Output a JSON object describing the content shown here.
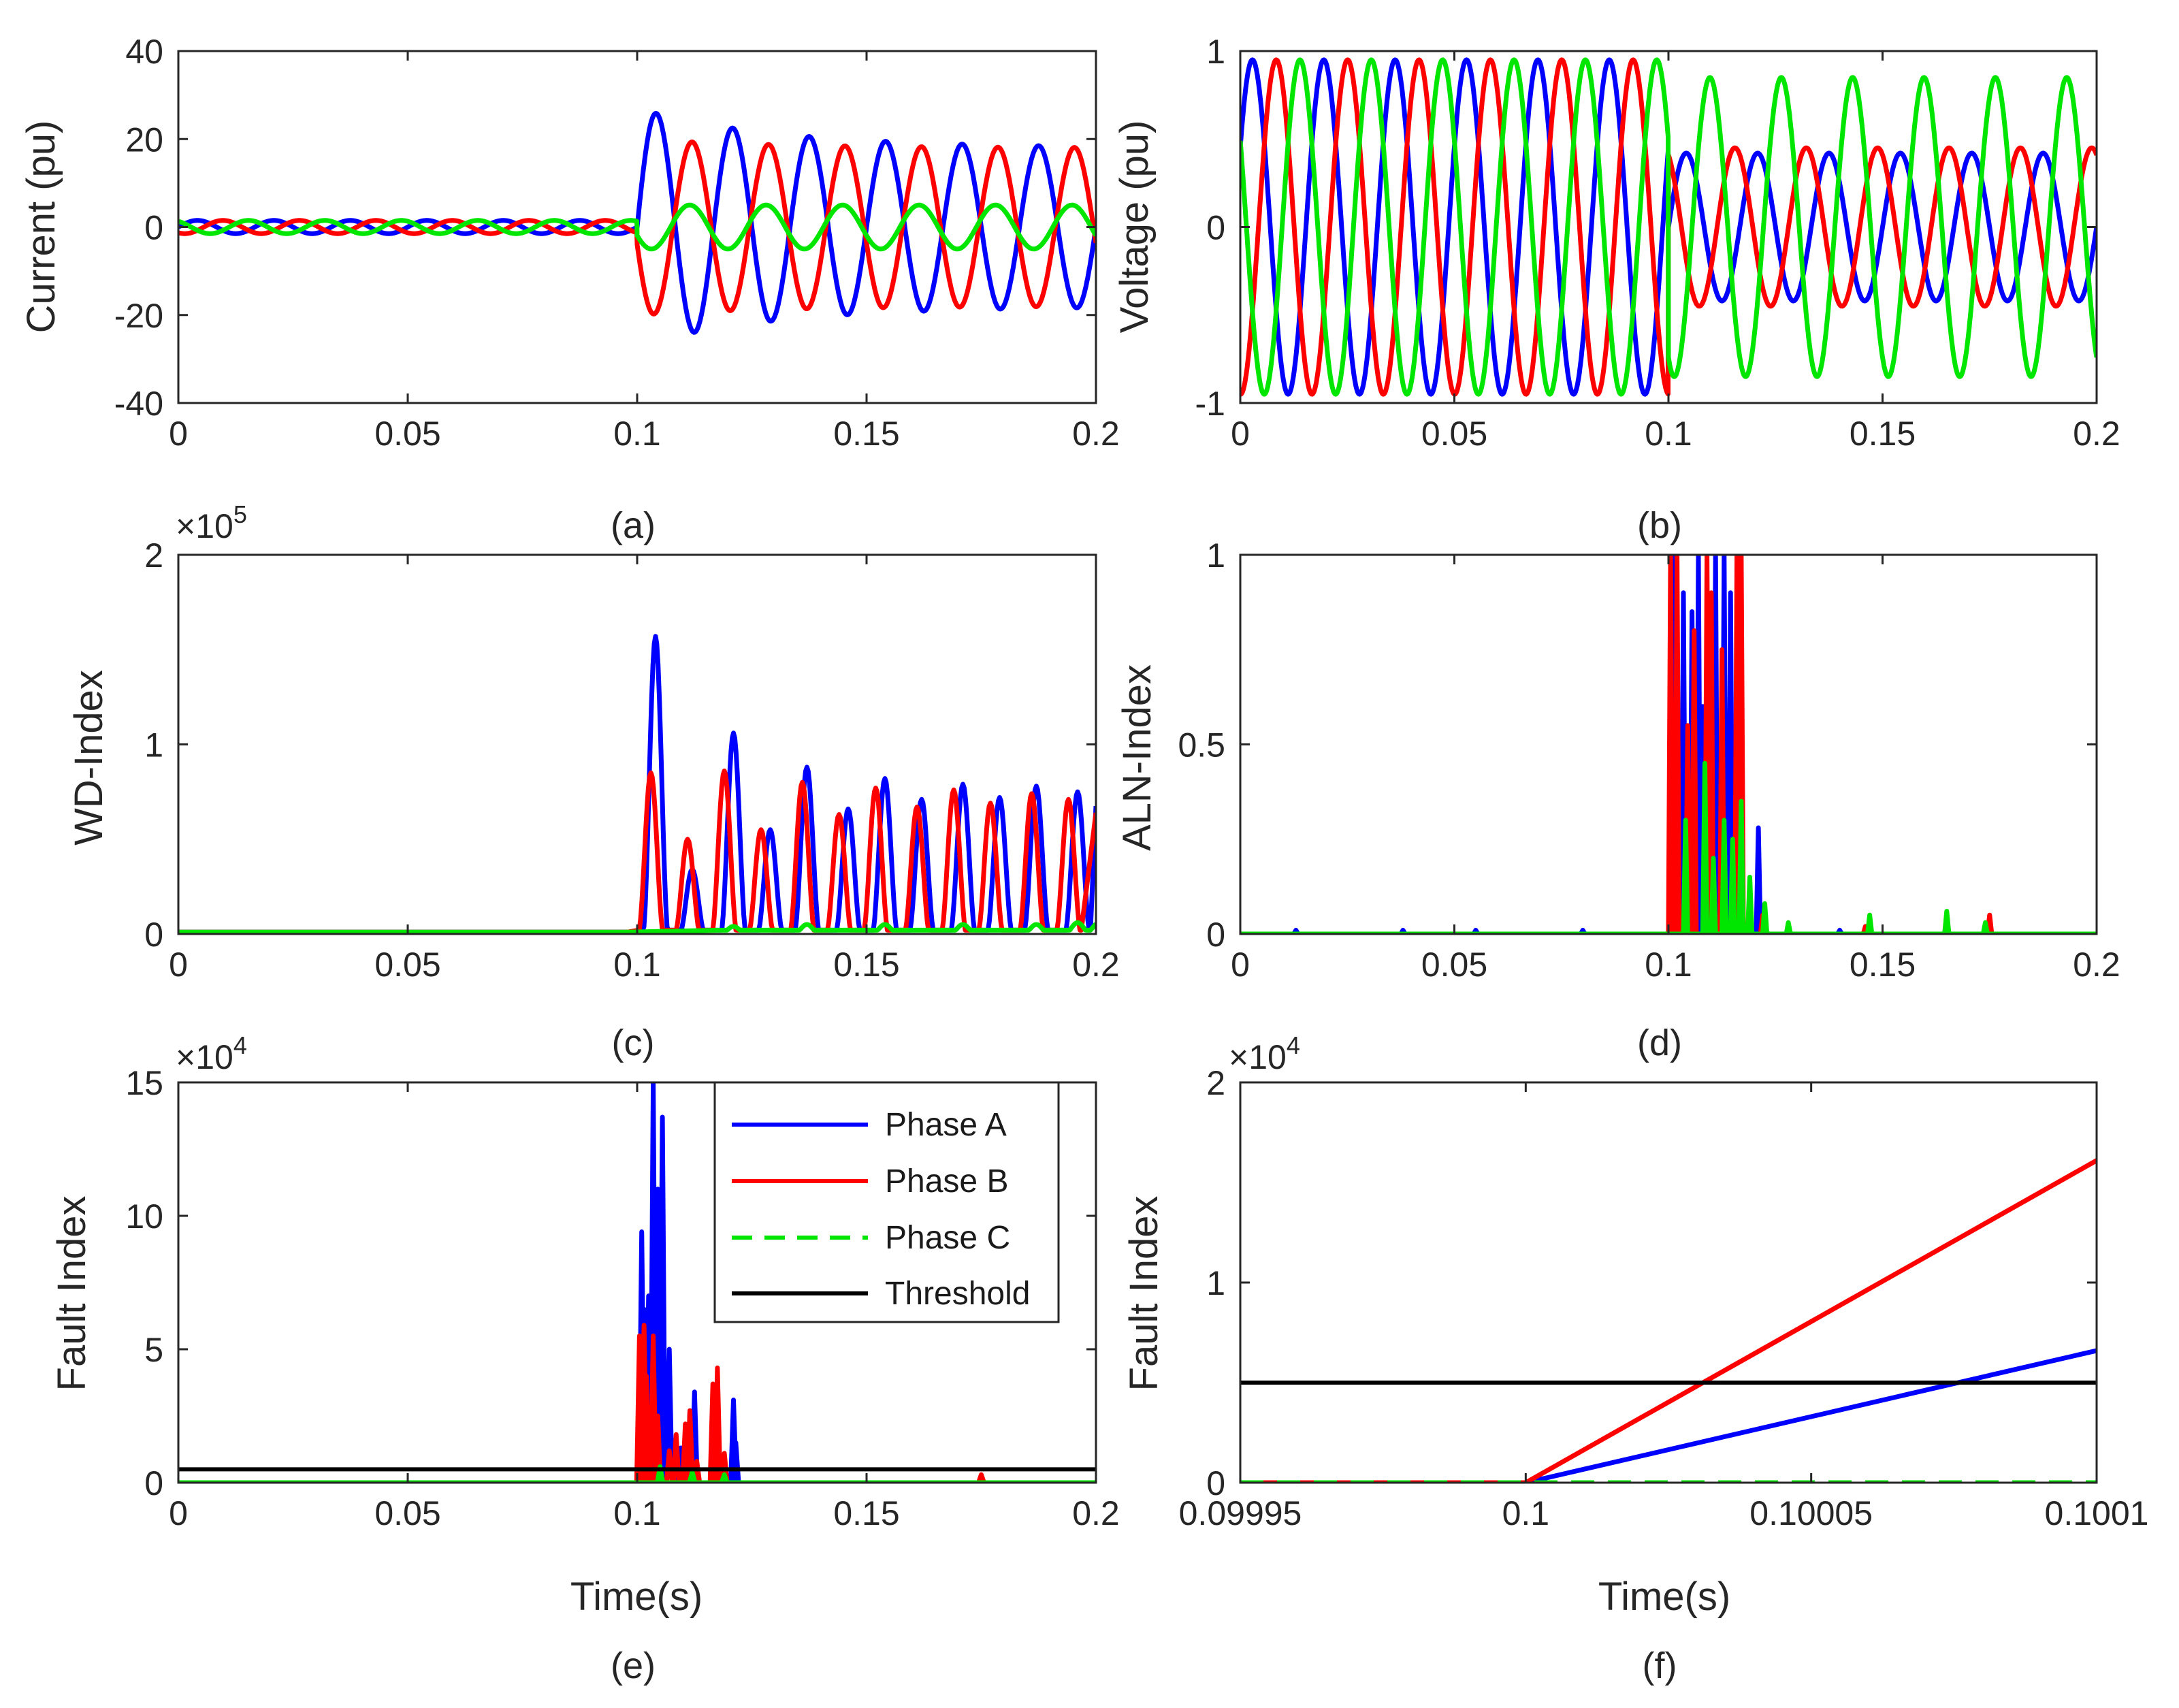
{
  "colors": {
    "phase_a": "#0000ff",
    "phase_b": "#ff0000",
    "phase_c": "#00e600",
    "threshold": "#000000",
    "axis": "#262626"
  },
  "chart_data": [
    {
      "id": "a",
      "type": "line",
      "caption": "(a)",
      "ylabel": "Current (pu)",
      "xlabel": "",
      "xlim": [
        0,
        0.2
      ],
      "ylim": [
        -40,
        40
      ],
      "xticks": [
        "0",
        "0.05",
        "0.1",
        "0.15",
        "0.2"
      ],
      "yticks": [
        "-40",
        "-20",
        "0",
        "20",
        "40"
      ],
      "exponent": "",
      "fault_time": 0.1,
      "frequency_hz": 60,
      "series": [
        {
          "name": "Phase A",
          "color_key": "phase_a",
          "pre_fault_amplitude": 1.5,
          "post_fault_peak": 27,
          "post_fault_tail": 18
        },
        {
          "name": "Phase B",
          "color_key": "phase_b",
          "pre_fault_amplitude": 1.5,
          "post_fault_peak": 20,
          "post_fault_tail": 18
        },
        {
          "name": "Phase C",
          "color_key": "phase_c",
          "pre_fault_amplitude": 1.5,
          "post_fault_peak": 5,
          "post_fault_tail": 5
        }
      ]
    },
    {
      "id": "b",
      "type": "line",
      "caption": "(b)",
      "ylabel": "Voltage (pu)",
      "xlabel": "",
      "xlim": [
        0,
        0.2
      ],
      "ylim": [
        -1,
        1
      ],
      "xticks": [
        "0",
        "0.05",
        "0.1",
        "0.15",
        "0.2"
      ],
      "yticks": [
        "-1",
        "0",
        "1"
      ],
      "exponent": "",
      "fault_time": 0.1,
      "frequency_hz": 60,
      "series": [
        {
          "name": "Phase A",
          "color_key": "phase_a",
          "pre_fault_amplitude": 0.95,
          "post_fault_amplitude": 0.42
        },
        {
          "name": "Phase B",
          "color_key": "phase_b",
          "pre_fault_amplitude": 0.95,
          "post_fault_amplitude": 0.45
        },
        {
          "name": "Phase C",
          "color_key": "phase_c",
          "pre_fault_amplitude": 0.95,
          "post_fault_amplitude": 0.85
        }
      ]
    },
    {
      "id": "c",
      "type": "line",
      "caption": "(c)",
      "ylabel": "WD-Index",
      "xlabel": "",
      "xlim": [
        0,
        0.2
      ],
      "ylim": [
        0,
        2
      ],
      "xticks": [
        "0",
        "0.05",
        "0.1",
        "0.15",
        "0.2"
      ],
      "yticks": [
        "0",
        "1",
        "2"
      ],
      "exponent": "5",
      "series": [
        {
          "name": "Phase A",
          "color_key": "phase_a",
          "peaks": [
            [
              0.104,
              1.57
            ],
            [
              0.112,
              0.34
            ],
            [
              0.121,
              1.06
            ],
            [
              0.129,
              0.55
            ],
            [
              0.137,
              0.88
            ],
            [
              0.146,
              0.66
            ],
            [
              0.154,
              0.82
            ],
            [
              0.162,
              0.71
            ],
            [
              0.171,
              0.79
            ],
            [
              0.179,
              0.72
            ],
            [
              0.187,
              0.78
            ],
            [
              0.196,
              0.75
            ]
          ]
        },
        {
          "name": "Phase B",
          "color_key": "phase_b",
          "peaks": [
            [
              0.103,
              0.85
            ],
            [
              0.111,
              0.5
            ],
            [
              0.119,
              0.86
            ],
            [
              0.127,
              0.55
            ],
            [
              0.136,
              0.8
            ],
            [
              0.144,
              0.63
            ],
            [
              0.152,
              0.77
            ],
            [
              0.161,
              0.67
            ],
            [
              0.169,
              0.76
            ],
            [
              0.177,
              0.69
            ],
            [
              0.186,
              0.74
            ],
            [
              0.194,
              0.71
            ]
          ]
        },
        {
          "name": "Phase C",
          "color_key": "phase_c",
          "peaks": [
            [
              0.121,
              0.04
            ],
            [
              0.137,
              0.05
            ],
            [
              0.154,
              0.05
            ],
            [
              0.171,
              0.05
            ],
            [
              0.187,
              0.05
            ],
            [
              0.196,
              0.06
            ]
          ]
        }
      ]
    },
    {
      "id": "d",
      "type": "line",
      "caption": "(d)",
      "ylabel": "ALN-Index",
      "xlabel": "",
      "xlim": [
        0,
        0.2
      ],
      "ylim": [
        0,
        1
      ],
      "xticks": [
        "0",
        "0.05",
        "0.1",
        "0.15",
        "0.2"
      ],
      "yticks": [
        "0",
        "0.5",
        "1"
      ],
      "exponent": "",
      "series": [
        {
          "name": "Phase A",
          "color_key": "phase_a",
          "spikes": [
            [
              0.1015,
              1.0
            ],
            [
              0.1035,
              0.9
            ],
            [
              0.1055,
              0.85
            ],
            [
              0.107,
              1.0
            ],
            [
              0.108,
              0.6
            ],
            [
              0.111,
              1.0
            ],
            [
              0.113,
              1.0
            ],
            [
              0.1145,
              0.9
            ],
            [
              0.1165,
              0.4
            ],
            [
              0.121,
              0.28
            ],
            [
              0.013,
              0.01
            ],
            [
              0.038,
              0.01
            ],
            [
              0.055,
              0.01
            ],
            [
              0.08,
              0.01
            ],
            [
              0.14,
              0.01
            ]
          ]
        },
        {
          "name": "Phase B",
          "color_key": "phase_b",
          "spikes": [
            [
              0.1005,
              1.0
            ],
            [
              0.102,
              1.0
            ],
            [
              0.1045,
              0.55
            ],
            [
              0.106,
              0.8
            ],
            [
              0.109,
              1.0
            ],
            [
              0.11,
              0.9
            ],
            [
              0.1125,
              0.75
            ],
            [
              0.116,
              1.0
            ],
            [
              0.117,
              1.0
            ],
            [
              0.122,
              0.05
            ],
            [
              0.146,
              0.02
            ],
            [
              0.165,
              0.05
            ],
            [
              0.175,
              0.05
            ]
          ]
        },
        {
          "name": "Phase C",
          "color_key": "phase_c",
          "spikes": [
            [
              0.104,
              0.3
            ],
            [
              0.1085,
              0.45
            ],
            [
              0.1105,
              0.2
            ],
            [
              0.113,
              0.3
            ],
            [
              0.115,
              0.25
            ],
            [
              0.117,
              0.35
            ],
            [
              0.119,
              0.15
            ],
            [
              0.1225,
              0.08
            ],
            [
              0.128,
              0.03
            ],
            [
              0.147,
              0.05
            ],
            [
              0.165,
              0.06
            ],
            [
              0.174,
              0.03
            ]
          ]
        }
      ]
    },
    {
      "id": "e",
      "type": "line",
      "caption": "(e)",
      "ylabel": "Fault Index",
      "xlabel": "Time(s)",
      "xlim": [
        0,
        0.2
      ],
      "ylim": [
        0,
        15
      ],
      "xticks": [
        "0",
        "0.05",
        "0.1",
        "0.15",
        "0.2"
      ],
      "yticks": [
        "0",
        "5",
        "10",
        "15"
      ],
      "exponent": "4",
      "threshold": 0.5,
      "series": [
        {
          "name": "Phase A",
          "color_key": "phase_a",
          "spikes": [
            [
              0.101,
              9.4
            ],
            [
              0.1015,
              6.5
            ],
            [
              0.1025,
              7.0
            ],
            [
              0.1035,
              15.0
            ],
            [
              0.1045,
              11.0
            ],
            [
              0.1055,
              13.7
            ],
            [
              0.107,
              5.0
            ],
            [
              0.1095,
              1.3
            ],
            [
              0.1115,
              2.7
            ],
            [
              0.1125,
              3.4
            ],
            [
              0.121,
              3.1
            ],
            [
              0.1215,
              1.5
            ]
          ]
        },
        {
          "name": "Phase B",
          "color_key": "phase_b",
          "spikes": [
            [
              0.1005,
              5.5
            ],
            [
              0.1015,
              5.9
            ],
            [
              0.102,
              4.0
            ],
            [
              0.1035,
              5.5
            ],
            [
              0.1045,
              2.5
            ],
            [
              0.107,
              1.2
            ],
            [
              0.1085,
              1.8
            ],
            [
              0.1105,
              2.2
            ],
            [
              0.1115,
              2.7
            ],
            [
              0.113,
              0.8
            ],
            [
              0.1165,
              3.7
            ],
            [
              0.1175,
              4.3
            ],
            [
              0.119,
              1.1
            ],
            [
              0.175,
              0.3
            ]
          ]
        },
        {
          "name": "Phase C",
          "color_key": "phase_c",
          "spikes": [
            [
              0.105,
              0.6
            ],
            [
              0.112,
              0.4
            ],
            [
              0.119,
              0.3
            ]
          ]
        }
      ],
      "legend": {
        "position": "top-right",
        "items": [
          {
            "label": "Phase A",
            "color_key": "phase_a",
            "dash": false
          },
          {
            "label": "Phase B",
            "color_key": "phase_b",
            "dash": false
          },
          {
            "label": "Phase C",
            "color_key": "phase_c",
            "dash": true
          },
          {
            "label": "Threshold",
            "color_key": "threshold",
            "dash": false
          }
        ]
      }
    },
    {
      "id": "f",
      "type": "line",
      "caption": "(f)",
      "ylabel": "Fault Index",
      "xlabel": "Time(s)",
      "xlim": [
        0.09995,
        0.1001
      ],
      "ylim": [
        0,
        2
      ],
      "xticks": [
        "0.09995",
        "0.1",
        "0.10005",
        "0.1001"
      ],
      "yticks": [
        "0",
        "1",
        "2"
      ],
      "exponent": "4",
      "threshold": 0.5,
      "series": [
        {
          "name": "Phase A",
          "color_key": "phase_a",
          "points": [
            [
              0.09995,
              0
            ],
            [
              0.1,
              0
            ],
            [
              0.1001,
              0.66
            ]
          ]
        },
        {
          "name": "Phase B",
          "color_key": "phase_b",
          "points": [
            [
              0.09995,
              0
            ],
            [
              0.1,
              0
            ],
            [
              0.1001,
              1.61
            ]
          ]
        },
        {
          "name": "Phase C",
          "color_key": "phase_c",
          "points": [
            [
              0.09995,
              0
            ],
            [
              0.1001,
              0
            ]
          ],
          "dash": true
        }
      ]
    }
  ]
}
